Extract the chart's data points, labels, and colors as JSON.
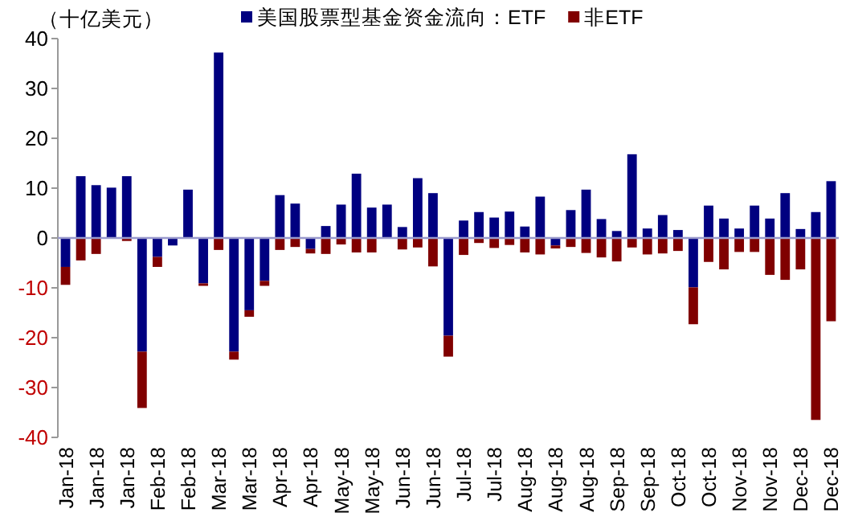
{
  "chart_data": {
    "type": "bar",
    "stacked": true,
    "ylabel": "（十亿美元）",
    "legend": "top",
    "categories": [
      "Jan-18",
      null,
      "Jan-18",
      null,
      "Jan-18",
      null,
      "Feb-18",
      null,
      "Feb-18",
      null,
      "Mar-18",
      null,
      "Mar-18",
      null,
      "Apr-18",
      null,
      "Apr-18",
      null,
      "May-18",
      null,
      "May-18",
      null,
      "Jun-18",
      null,
      "Jun-18",
      null,
      "Jul-18",
      null,
      "Jul-18",
      null,
      "Aug-18",
      null,
      "Aug-18",
      null,
      "Aug-18",
      null,
      "Sep-18",
      null,
      "Sep-18",
      null,
      "Oct-18",
      null,
      "Oct-18",
      null,
      "Nov-18",
      null,
      "Nov-18",
      null,
      "Dec-18",
      null,
      "Dec-18"
    ],
    "ref_lines": [
      {
        "axis": "y",
        "value": 0,
        "color": "#9999cc"
      }
    ],
    "ylim": [
      -40,
      40
    ],
    "yticks": [
      -40,
      -30,
      -20,
      -10,
      0,
      10,
      20,
      30,
      40
    ],
    "series": [
      {
        "name": "美国股票型基金资金流向：ETF",
        "color": "#000080",
        "values": [
          -5.8,
          12.4,
          10.6,
          10.1,
          12.4,
          -22.8,
          -3.8,
          -1.5,
          9.7,
          -9.1,
          37.2,
          -22.8,
          -14.5,
          -8.6,
          8.6,
          6.9,
          -2.2,
          2.4,
          6.7,
          12.9,
          6.1,
          6.7,
          2.2,
          12.0,
          9.0,
          -19.6,
          3.5,
          5.2,
          4.1,
          5.3,
          2.3,
          8.3,
          -1.5,
          5.6,
          9.7,
          3.8,
          1.4,
          16.8,
          1.9,
          4.6,
          1.6,
          -9.9,
          6.5,
          3.9,
          1.9,
          6.5,
          3.9,
          9.0,
          1.8,
          5.2,
          11.4
        ]
      },
      {
        "name": "非ETF",
        "color": "#800000",
        "values": [
          -3.6,
          -4.5,
          -3.2,
          0,
          -0.6,
          -11.3,
          -2.0,
          0,
          0,
          -0.5,
          -2.4,
          -1.6,
          -1.3,
          -1.0,
          -2.4,
          -1.8,
          -0.9,
          -3.2,
          -1.3,
          -2.9,
          -2.9,
          0,
          -2.3,
          -1.9,
          -5.7,
          -4.2,
          -3.4,
          -1.0,
          -2.0,
          -1.4,
          -2.9,
          -3.3,
          -0.6,
          -1.8,
          -3.0,
          -3.9,
          -4.7,
          -1.9,
          -3.3,
          -3.1,
          -2.6,
          -7.4,
          -4.8,
          -6.3,
          -2.8,
          -2.8,
          -7.4,
          -8.4,
          -6.3,
          -36.5,
          -16.7
        ]
      }
    ]
  }
}
